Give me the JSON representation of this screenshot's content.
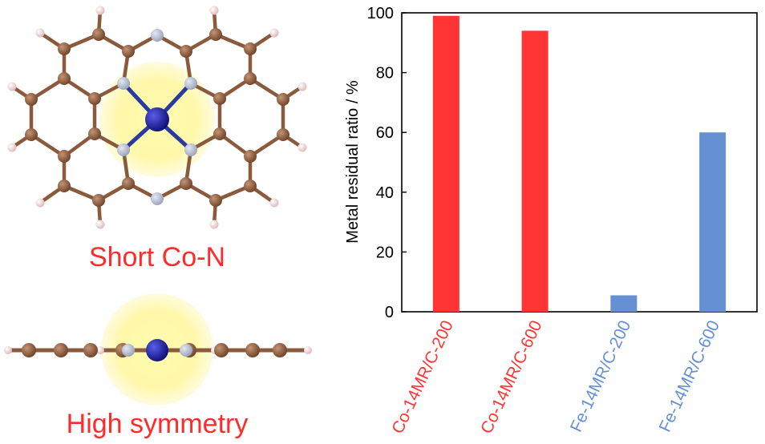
{
  "left_panel": {
    "top_caption": "Short Co-N",
    "bottom_caption": "High symmetry"
  },
  "colors": {
    "carbon": "#8a5a3c",
    "nitrogen": "#b4bccb",
    "hydrogen": "#f0d6d6",
    "cobalt": "#16189a",
    "bond": "#8a5a3c",
    "metal_bond": "#2a3aa0",
    "glow": "#fffaa0",
    "co_series": "#ff3535",
    "fe_series": "#6690d4"
  },
  "chart_data": {
    "type": "bar",
    "categories": [
      "Co-14MR/C-200",
      "Co-14MR/C-600",
      "Fe-14MR/C-200",
      "Fe-14MR/C-600"
    ],
    "values": [
      99,
      94,
      5.5,
      60
    ],
    "bar_colors": [
      "#ff3535",
      "#ff3535",
      "#6690d4",
      "#6690d4"
    ],
    "title": "",
    "xlabel": "",
    "ylabel": "Metal residual ratio / %",
    "ylim": [
      0,
      100
    ],
    "yticks": [
      0,
      20,
      40,
      60,
      80,
      100
    ],
    "grid": false
  }
}
